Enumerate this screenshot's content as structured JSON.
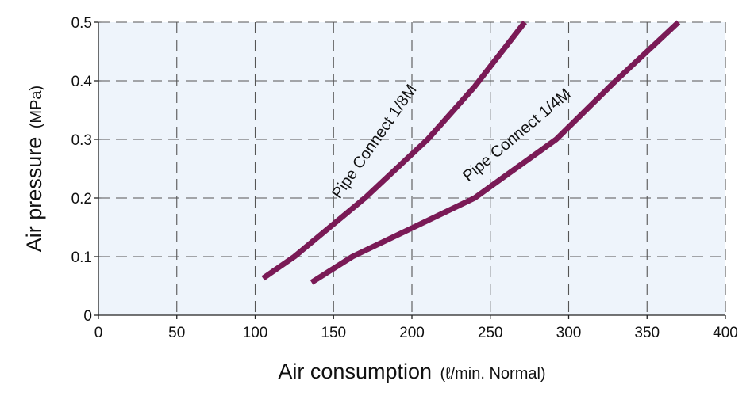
{
  "chart_data": {
    "type": "line",
    "title": "",
    "xlabel": {
      "main": "Air consumption",
      "unit": "(ℓ/min. Normal)"
    },
    "ylabel": {
      "main": "Air pressure",
      "unit": "(MPa)"
    },
    "xlim": [
      0,
      400
    ],
    "ylim": [
      0,
      0.5
    ],
    "xticks": [
      0,
      50,
      100,
      150,
      200,
      250,
      300,
      350,
      400
    ],
    "yticks": [
      0,
      0.1,
      0.2,
      0.3,
      0.4,
      0.5
    ],
    "xtick_labels": [
      "0",
      "50",
      "100",
      "150",
      "200",
      "250",
      "300",
      "350",
      "400"
    ],
    "ytick_labels": [
      "0",
      "0.1",
      "0.2",
      "0.3",
      "0.4",
      "0.5"
    ],
    "grid": true,
    "plot_background": "#eef4fb",
    "series": [
      {
        "name": "Pipe Connect 1/8M",
        "color": "#7a1a56",
        "x": [
          105,
          125,
          170,
          210,
          240,
          272
        ],
        "y": [
          0.063,
          0.1,
          0.2,
          0.3,
          0.39,
          0.5
        ]
      },
      {
        "name": "Pipe Connect 1/4M",
        "color": "#7a1a56",
        "x": [
          136,
          162,
          240,
          292,
          330,
          370
        ],
        "y": [
          0.056,
          0.1,
          0.2,
          0.3,
          0.4,
          0.5
        ]
      }
    ]
  }
}
